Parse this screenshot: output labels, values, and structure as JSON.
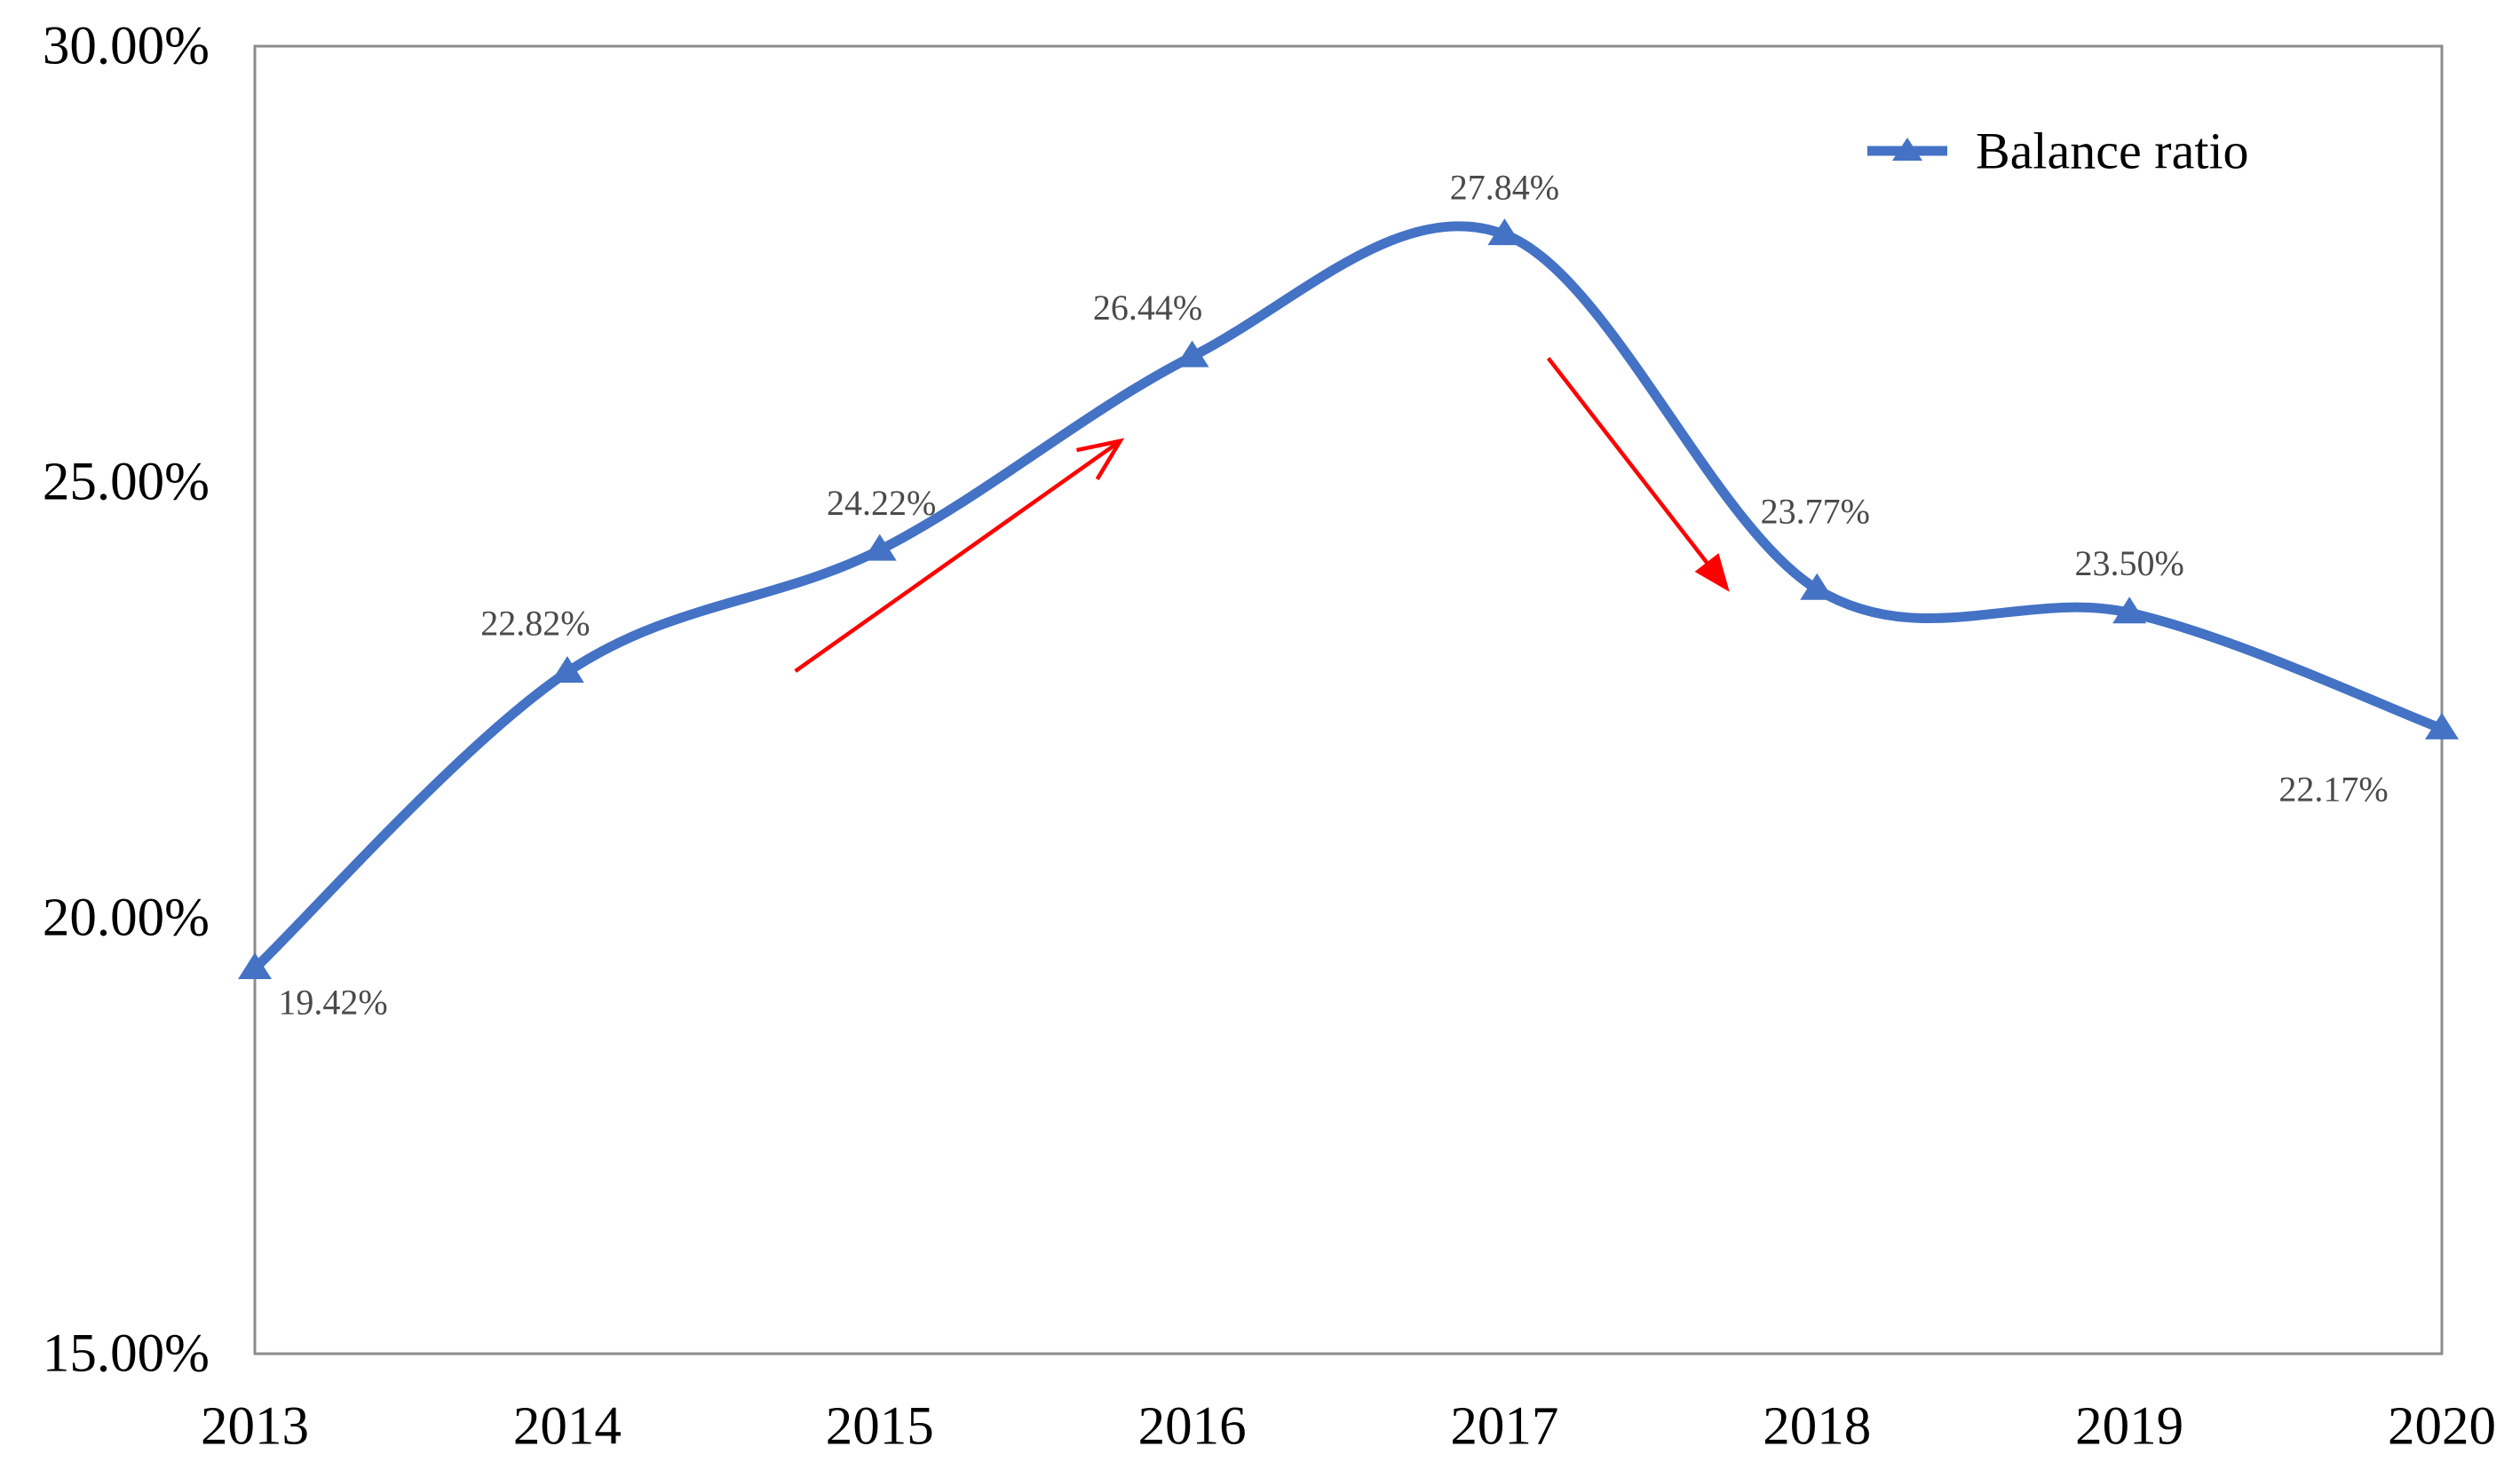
{
  "chart_data": {
    "type": "line",
    "title": "",
    "smooth": true,
    "grid": false,
    "legend_position": "top-right",
    "categories": [
      "2013",
      "2014",
      "2015",
      "2016",
      "2017",
      "2018",
      "2019",
      "2020"
    ],
    "series": [
      {
        "name": "Balance ratio",
        "values": [
          19.42,
          22.82,
          24.22,
          26.44,
          27.84,
          23.77,
          23.5,
          22.17
        ],
        "color": "#4472C4",
        "marker": "triangle-up"
      }
    ],
    "data_labels": [
      "19.42%",
      "22.82%",
      "24.22%",
      "26.44%",
      "27.84%",
      "23.77%",
      "23.50%",
      "22.17%"
    ],
    "y_ticks": [
      {
        "label": "30.00%",
        "value": 30
      },
      {
        "label": "25.00%",
        "value": 25
      },
      {
        "label": "20.00%",
        "value": 20
      },
      {
        "label": "15.00%",
        "value": 15
      }
    ],
    "ylim": [
      15,
      30
    ],
    "annotations": [
      {
        "type": "arrow",
        "direction": "up",
        "color": "#FF0000",
        "head_style": "open",
        "from_x": 2014.73,
        "from_y": 22.83,
        "to_x": 2015.77,
        "to_y": 25.47
      },
      {
        "type": "arrow",
        "direction": "down",
        "color": "#FF0000",
        "head_style": "filled",
        "from_x": 2017.14,
        "from_y": 26.42,
        "to_x": 2017.72,
        "to_y": 23.74
      }
    ]
  },
  "colors": {
    "series_blue": "#4472C4",
    "arrow_red": "#FF0000",
    "axis_text": "#000000",
    "data_label_text": "#4a4a4a",
    "plot_border": "#8C8C8C",
    "background": "#FFFFFF"
  }
}
